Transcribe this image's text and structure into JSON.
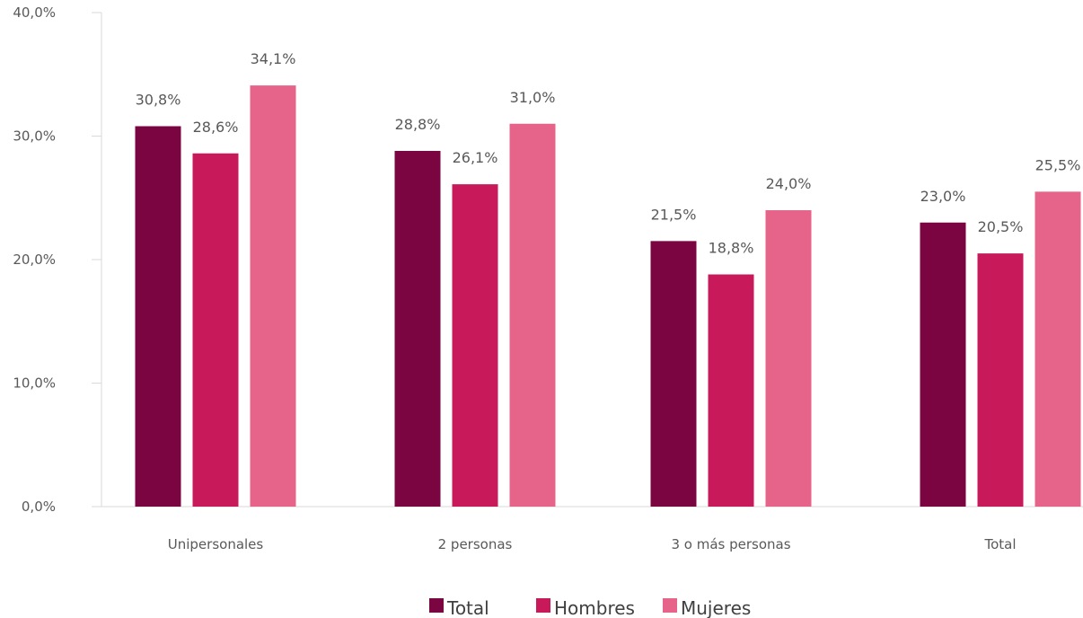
{
  "chart_data": {
    "type": "bar",
    "categories": [
      "Unipersonales",
      "2 personas",
      "3 o más personas",
      "Total"
    ],
    "series": [
      {
        "name": "Total",
        "color": "#7a0541",
        "values": [
          30.8,
          28.8,
          21.5,
          23.0
        ],
        "labels": [
          "30,8%",
          "28,8%",
          "21,5%",
          "23,0%"
        ]
      },
      {
        "name": "Hombres",
        "color": "#c81a5b",
        "values": [
          28.6,
          26.1,
          18.8,
          20.5
        ],
        "labels": [
          "28,6%",
          "26,1%",
          "18,8%",
          "20,5%"
        ]
      },
      {
        "name": "Mujeres",
        "color": "#e66489",
        "values": [
          34.1,
          31.0,
          24.0,
          25.5
        ],
        "labels": [
          "34,1%",
          "31,0%",
          "24,0%",
          "25,5%"
        ]
      }
    ],
    "ylim": [
      0,
      40
    ],
    "yticks": [
      0,
      10,
      20,
      30,
      40
    ],
    "ytick_labels": [
      "0,0%",
      "10,0%",
      "20,0%",
      "30,0%",
      "40,0%"
    ],
    "grid": false,
    "legend": "bottom-center"
  }
}
